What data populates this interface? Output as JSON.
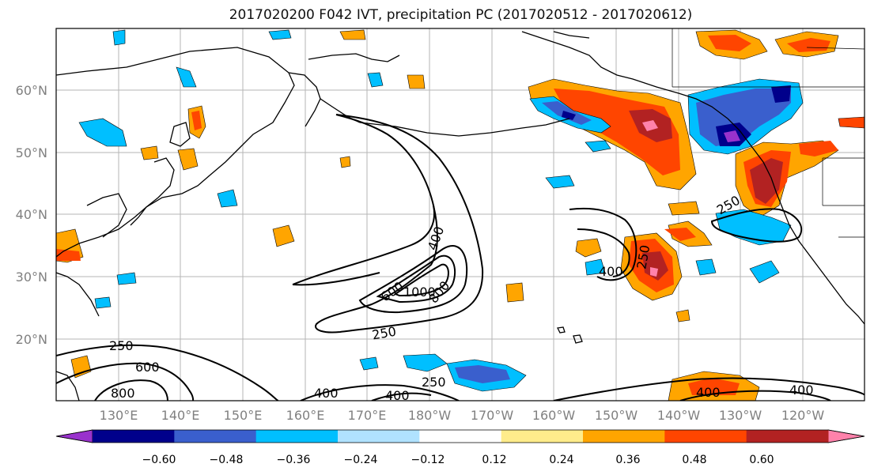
{
  "title": "2017020200 F042 IVT, precipitation PC (2017020512 - 2017020612)",
  "map": {
    "lat_labels": [
      "60°N",
      "50°N",
      "40°N",
      "30°N",
      "20°N"
    ],
    "lon_labels": [
      "130°E",
      "140°E",
      "150°E",
      "160°E",
      "170°E",
      "180°W",
      "170°W",
      "160°W",
      "150°W",
      "140°W",
      "130°W",
      "120°W"
    ]
  },
  "contour_labels": [
    "400",
    "600",
    "1000",
    "800",
    "250",
    "400",
    "250",
    "250",
    "250",
    "400",
    "250",
    "600",
    "800",
    "250",
    "400",
    "250",
    "400",
    "400"
  ],
  "colorbar": {
    "colors": [
      "#9932cc",
      "#00008b",
      "#3a5fcd",
      "#00bfff",
      "#b0e2ff",
      "#ffffff",
      "#ffec8b",
      "#ffa500",
      "#ff4500",
      "#b22222",
      "#ff82ab"
    ],
    "tick_labels": [
      "−0.60",
      "−0.48",
      "−0.36",
      "−0.24",
      "−0.12",
      "0.12",
      "0.24",
      "0.36",
      "0.48",
      "0.60"
    ]
  }
}
